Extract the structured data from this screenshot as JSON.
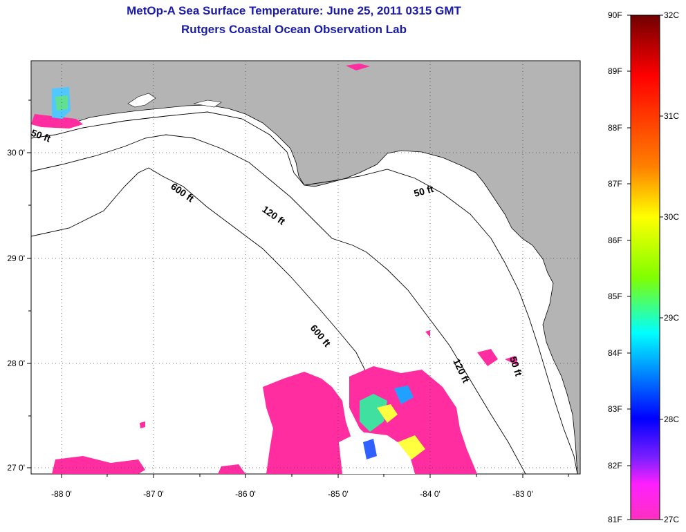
{
  "title": "MetOp-A Sea Surface Temperature:  June 25, 2011 0315 GMT",
  "subtitle": "Rutgers Coastal Ocean Observation Lab",
  "map": {
    "lon_ticks": [
      "-88 0'",
      "-87 0'",
      "-86 0'",
      "-85 0'",
      "-84 0'",
      "-83 0'"
    ],
    "lat_ticks": [
      "30 0'",
      "29 0'",
      "28 0'",
      "27 0'"
    ],
    "land_color": "#b4b4b4",
    "water_color": "#ffffff",
    "depth_labels": [
      "50 ft",
      "600 ft",
      "120 ft",
      "50 ft",
      "600 ft",
      "120 ft",
      "50 ft"
    ]
  },
  "colorbar": {
    "fahrenheit_labels": [
      "90F",
      "89F",
      "88F",
      "87F",
      "86F",
      "85F",
      "84F",
      "83F",
      "82F",
      "81F"
    ],
    "celsius_labels": [
      "32C",
      "31C",
      "30C",
      "29C",
      "28C",
      "27C"
    ],
    "colors": [
      "#7a0000",
      "#ff0000",
      "#ff8000",
      "#ffff00",
      "#80ff00",
      "#00ffff",
      "#0000ff",
      "#ff00ff"
    ]
  }
}
